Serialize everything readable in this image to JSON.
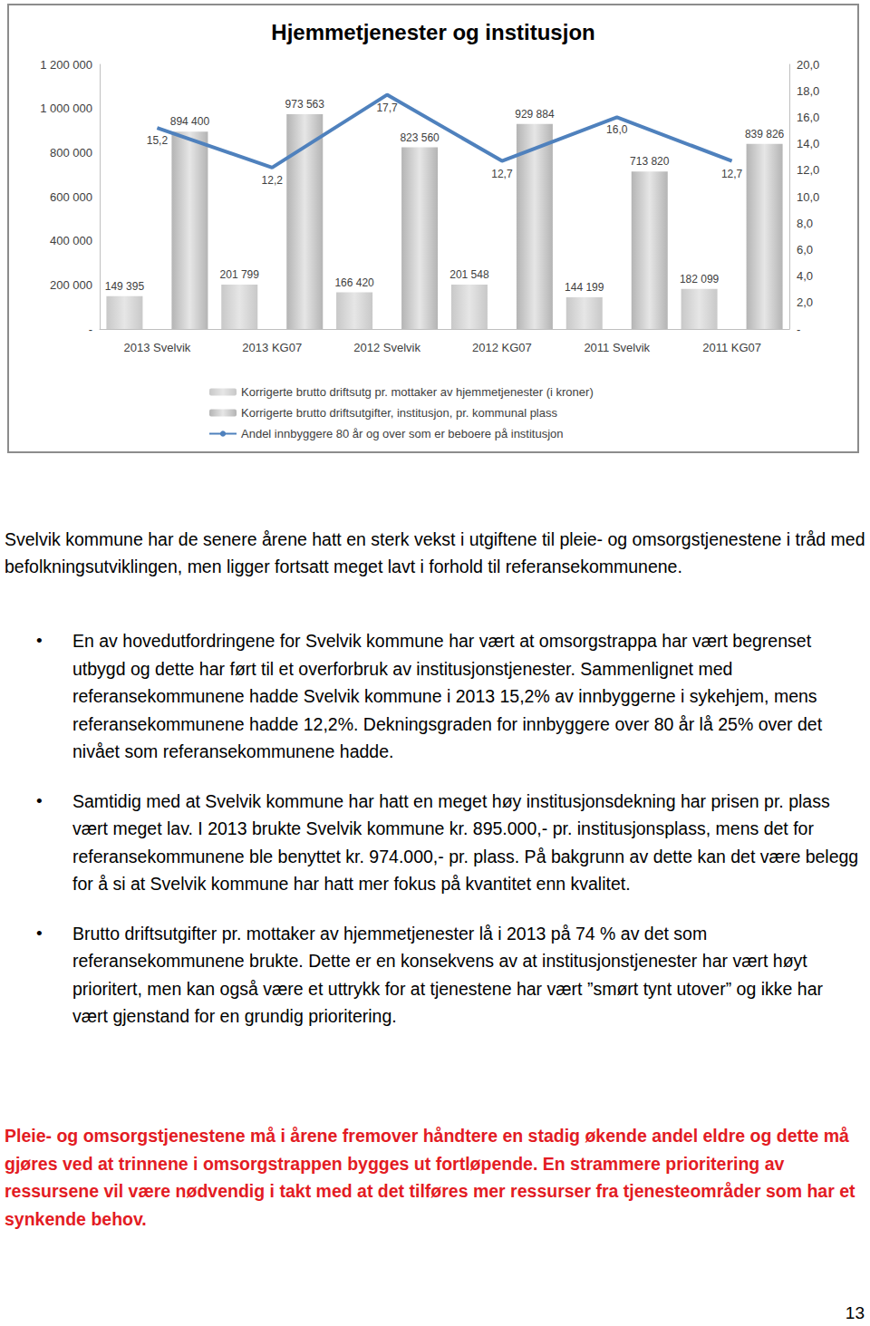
{
  "chart_data": {
    "type": "bar",
    "title": "Hjemmetjenester og institusjon",
    "categories": [
      "2013 Svelvik",
      "2013 KG07",
      "2012 Svelvik",
      "2012 KG07",
      "2011 Svelvik",
      "2011 KG07"
    ],
    "series": [
      {
        "name": "Korrigerte brutto driftsutg pr. mottaker av hjemmetjenester (i kroner)",
        "type": "bar",
        "color": "#c8c8c8",
        "values": [
          149395,
          201799,
          166420,
          201548,
          144199,
          182099
        ],
        "value_labels": [
          "149 395",
          "201 799",
          "166 420",
          "201 548",
          "144 199",
          "182 099"
        ]
      },
      {
        "name": "Korrigerte brutto driftsutgifter, institusjon, pr. kommunal plass",
        "type": "bar",
        "color": "#b4b4b4",
        "values": [
          894400,
          973563,
          823560,
          929884,
          713820,
          839826
        ],
        "value_labels": [
          "894 400",
          "973 563",
          "823 560",
          "929 884",
          "713 820",
          "839 826"
        ]
      },
      {
        "name": "Andel innbyggere 80 år og over som er beboere på institusjon",
        "type": "line",
        "axis": "y2",
        "color": "#4f81bd",
        "values": [
          15.2,
          12.2,
          17.7,
          12.7,
          16.0,
          12.7
        ],
        "value_labels": [
          "15,2",
          "12,2",
          "17,7",
          "12,7",
          "16,0",
          "12,7"
        ]
      }
    ],
    "ylim": [
      0,
      1200000
    ],
    "yticks": [
      {
        "value": 0,
        "label": "-"
      },
      {
        "value": 200000,
        "label": "200 000"
      },
      {
        "value": 400000,
        "label": "400 000"
      },
      {
        "value": 600000,
        "label": "600 000"
      },
      {
        "value": 800000,
        "label": "800 000"
      },
      {
        "value": 1000000,
        "label": "1 000 000"
      },
      {
        "value": 1200000,
        "label": "1 200 000"
      }
    ],
    "y2lim": [
      0,
      20
    ],
    "y2ticks": [
      {
        "value": 0,
        "label": "-"
      },
      {
        "value": 2,
        "label": "2,0"
      },
      {
        "value": 4,
        "label": "4,0"
      },
      {
        "value": 6,
        "label": "6,0"
      },
      {
        "value": 8,
        "label": "8,0"
      },
      {
        "value": 10,
        "label": "10,0"
      },
      {
        "value": 12,
        "label": "12,0"
      },
      {
        "value": 14,
        "label": "14,0"
      },
      {
        "value": 16,
        "label": "16,0"
      },
      {
        "value": 18,
        "label": "18,0"
      },
      {
        "value": 20,
        "label": "20,0"
      }
    ],
    "grid": false,
    "legend": "bottom",
    "data_labels": true
  },
  "document": {
    "intro": "Svelvik kommune har de senere årene hatt en sterk vekst i utgiftene til pleie- og omsorgstjenestene i tråd med befolkningsutviklingen, men ligger fortsatt meget lavt i forhold til referansekommunene.",
    "bullets": [
      "En av hovedutfordringene for Svelvik kommune har vært at omsorgstrappa har vært begrenset utbygd og dette har ført til et overforbruk av institusjonstjenester. Sammenlignet med referansekommunene hadde Svelvik kommune i 2013 15,2% av innbyggerne i sykehjem, mens referansekommunene hadde 12,2%. Dekningsgraden for innbyggere over 80 år lå 25% over det nivået som referansekommunene hadde.",
      "Samtidig med at Svelvik kommune har hatt en meget høy institusjonsdekning har prisen pr. plass vært meget lav. I 2013 brukte Svelvik kommune kr. 895.000,- pr. institusjonsplass, mens det for referansekommunene ble benyttet kr. 974.000,- pr. plass. På bakgrunn av dette kan det være belegg for å si at Svelvik kommune har hatt mer fokus på kvantitet enn kvalitet.",
      "Brutto driftsutgifter pr. mottaker av hjemmetjenester lå i 2013 på 74 % av det som referansekommunene brukte. Dette er en konsekvens av at institusjonstjenester har vært høyt prioritert, men kan også være et uttrykk for at tjenestene har vært ”smørt tynt utover” og ikke har vært gjenstand for en grundig prioritering."
    ],
    "conclusion": "Pleie- og omsorgstjenestene må i årene fremover håndtere en stadig økende andel eldre og dette må gjøres ved at trinnene i omsorgstrappen bygges ut fortløpende. En strammere prioritering av ressursene vil være nødvendig i takt med at det tilføres mer ressurser fra tjenesteområder som har et synkende behov.",
    "page_number": "13"
  }
}
